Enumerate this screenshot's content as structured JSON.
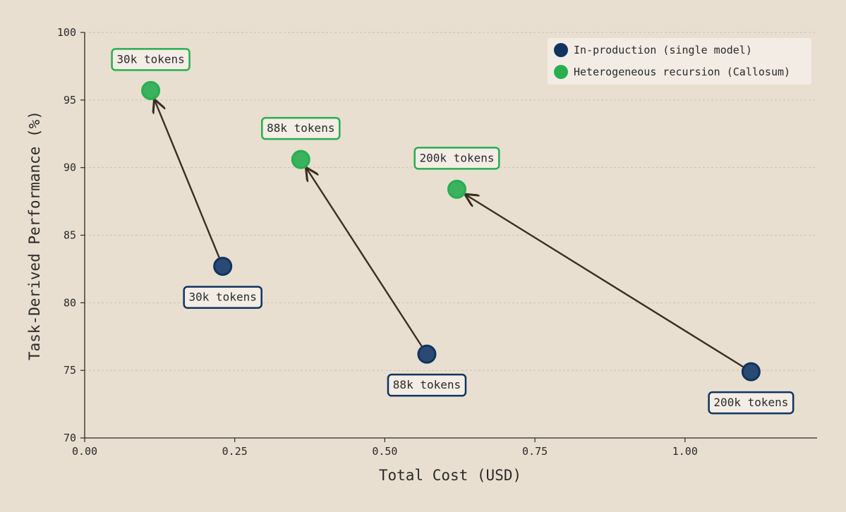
{
  "chart_data": {
    "type": "scatter",
    "title": "",
    "xlabel": "Total Cost (USD)",
    "ylabel": "Task-Derived Performance (%)",
    "xlim": [
      0,
      1.22
    ],
    "ylim": [
      70,
      100
    ],
    "x_ticks": [
      0.0,
      0.25,
      0.5,
      0.75,
      1.0
    ],
    "x_tick_labels": [
      "0.00",
      "0.25",
      "0.50",
      "0.75",
      "1.00"
    ],
    "y_ticks": [
      70,
      75,
      80,
      85,
      90,
      95,
      100
    ],
    "y_tick_labels": [
      "70",
      "75",
      "80",
      "85",
      "90",
      "95",
      "100"
    ],
    "grid": "horizontal dashed",
    "legend_position": "top-right",
    "series": [
      {
        "name": "In-production (single model)",
        "color": "#0f3460",
        "points": [
          {
            "x": 0.23,
            "y": 82.7,
            "label": "30k tokens"
          },
          {
            "x": 0.57,
            "y": 76.2,
            "label": "88k tokens"
          },
          {
            "x": 1.11,
            "y": 74.9,
            "label": "200k tokens"
          }
        ]
      },
      {
        "name": "Heterogeneous recursion (Callosum)",
        "color": "#27ae4f",
        "points": [
          {
            "x": 0.11,
            "y": 95.7,
            "label": "30k tokens"
          },
          {
            "x": 0.36,
            "y": 90.6,
            "label": "88k tokens"
          },
          {
            "x": 0.62,
            "y": 88.4,
            "label": "200k tokens"
          }
        ]
      }
    ],
    "arrows": [
      {
        "from_series": 0,
        "from_index": 0,
        "to_series": 1,
        "to_index": 0
      },
      {
        "from_series": 0,
        "from_index": 1,
        "to_series": 1,
        "to_index": 1
      },
      {
        "from_series": 0,
        "from_index": 2,
        "to_series": 1,
        "to_index": 2
      }
    ]
  }
}
